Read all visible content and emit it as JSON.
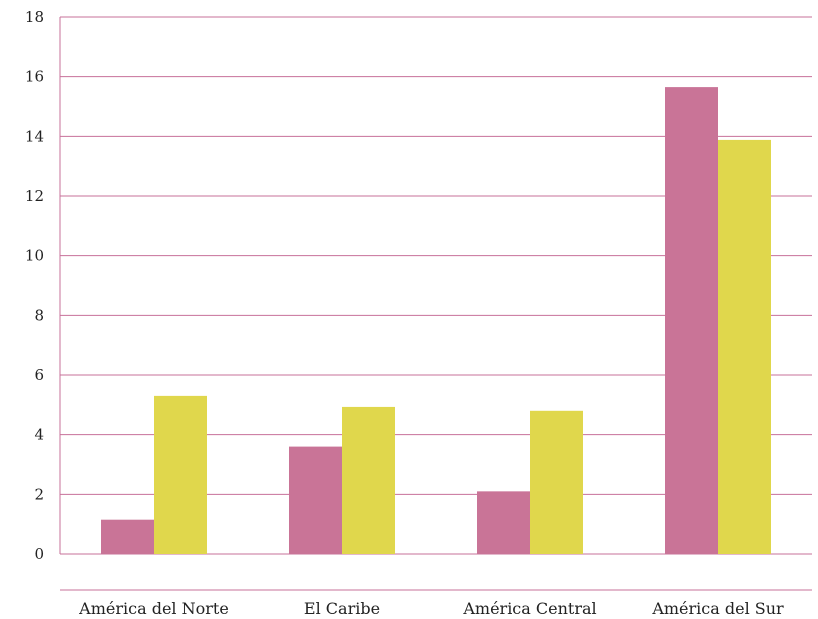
{
  "chart_data": {
    "type": "bar",
    "title": "",
    "xlabel": "",
    "ylabel": "",
    "categories": [
      "América del Norte",
      "El Caribe",
      "América Central",
      "América del Sur"
    ],
    "series": [
      {
        "values": [
          1.15,
          3.6,
          2.1,
          15.65
        ],
        "color": "#c97497"
      },
      {
        "values": [
          5.3,
          4.93,
          4.8,
          13.88
        ],
        "color": "#e0d74c"
      }
    ],
    "ylim": [
      0,
      18
    ],
    "yticks": [
      0,
      2,
      4,
      6,
      8,
      10,
      12,
      14,
      16,
      18
    ],
    "grid": true,
    "grid_color": "#c7709a"
  }
}
